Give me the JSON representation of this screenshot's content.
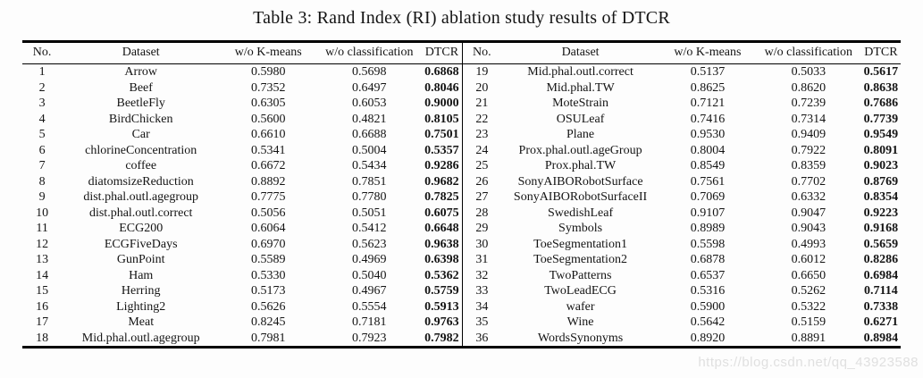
{
  "caption": "Table 3: Rand Index (RI) ablation study results of DTCR",
  "watermark": "https://blog.csdn.net/qq_43923588",
  "colors": {
    "rule": "#000000",
    "text": "#141414",
    "watermark": "#e0e0e0"
  },
  "table": {
    "columns": [
      "No.",
      "Dataset",
      "w/o K-means",
      "w/o classification",
      "DTCR"
    ],
    "left_rows": [
      [
        "1",
        "Arrow",
        "0.5980",
        "0.5698",
        "0.6868"
      ],
      [
        "2",
        "Beef",
        "0.7352",
        "0.6497",
        "0.8046"
      ],
      [
        "3",
        "BeetleFly",
        "0.6305",
        "0.6053",
        "0.9000"
      ],
      [
        "4",
        "BirdChicken",
        "0.5600",
        "0.4821",
        "0.8105"
      ],
      [
        "5",
        "Car",
        "0.6610",
        "0.6688",
        "0.7501"
      ],
      [
        "6",
        "chlorineConcentration",
        "0.5341",
        "0.5004",
        "0.5357"
      ],
      [
        "7",
        "coffee",
        "0.6672",
        "0.5434",
        "0.9286"
      ],
      [
        "8",
        "diatomsizeReduction",
        "0.8892",
        "0.7851",
        "0.9682"
      ],
      [
        "9",
        "dist.phal.outl.agegroup",
        "0.7775",
        "0.7780",
        "0.7825"
      ],
      [
        "10",
        "dist.phal.outl.correct",
        "0.5056",
        "0.5051",
        "0.6075"
      ],
      [
        "11",
        "ECG200",
        "0.6064",
        "0.5412",
        "0.6648"
      ],
      [
        "12",
        "ECGFiveDays",
        "0.6970",
        "0.5623",
        "0.9638"
      ],
      [
        "13",
        "GunPoint",
        "0.5589",
        "0.4969",
        "0.6398"
      ],
      [
        "14",
        "Ham",
        "0.5330",
        "0.5040",
        "0.5362"
      ],
      [
        "15",
        "Herring",
        "0.5173",
        "0.4967",
        "0.5759"
      ],
      [
        "16",
        "Lighting2",
        "0.5626",
        "0.5554",
        "0.5913"
      ],
      [
        "17",
        "Meat",
        "0.8245",
        "0.7181",
        "0.9763"
      ],
      [
        "18",
        "Mid.phal.outl.agegroup",
        "0.7981",
        "0.7923",
        "0.7982"
      ]
    ],
    "right_rows": [
      [
        "19",
        "Mid.phal.outl.correct",
        "0.5137",
        "0.5033",
        "0.5617"
      ],
      [
        "20",
        "Mid.phal.TW",
        "0.8625",
        "0.8620",
        "0.8638"
      ],
      [
        "21",
        "MoteStrain",
        "0.7121",
        "0.7239",
        "0.7686"
      ],
      [
        "22",
        "OSULeaf",
        "0.7416",
        "0.7314",
        "0.7739"
      ],
      [
        "23",
        "Plane",
        "0.9530",
        "0.9409",
        "0.9549"
      ],
      [
        "24",
        "Prox.phal.outl.ageGroup",
        "0.8004",
        "0.7922",
        "0.8091"
      ],
      [
        "25",
        "Prox.phal.TW",
        "0.8549",
        "0.8359",
        "0.9023"
      ],
      [
        "26",
        "SonyAIBORobotSurface",
        "0.7561",
        "0.7702",
        "0.8769"
      ],
      [
        "27",
        "SonyAIBORobotSurfaceII",
        "0.7069",
        "0.6332",
        "0.8354"
      ],
      [
        "28",
        "SwedishLeaf",
        "0.9107",
        "0.9047",
        "0.9223"
      ],
      [
        "29",
        "Symbols",
        "0.8989",
        "0.9043",
        "0.9168"
      ],
      [
        "30",
        "ToeSegmentation1",
        "0.5598",
        "0.4993",
        "0.5659"
      ],
      [
        "31",
        "ToeSegmentation2",
        "0.6878",
        "0.6012",
        "0.8286"
      ],
      [
        "32",
        "TwoPatterns",
        "0.6537",
        "0.6650",
        "0.6984"
      ],
      [
        "33",
        "TwoLeadECG",
        "0.5316",
        "0.5262",
        "0.7114"
      ],
      [
        "34",
        "wafer",
        "0.5900",
        "0.5322",
        "0.7338"
      ],
      [
        "35",
        "Wine",
        "0.5642",
        "0.5159",
        "0.6271"
      ],
      [
        "36",
        "WordsSynonyms",
        "0.8920",
        "0.8891",
        "0.8984"
      ]
    ]
  }
}
